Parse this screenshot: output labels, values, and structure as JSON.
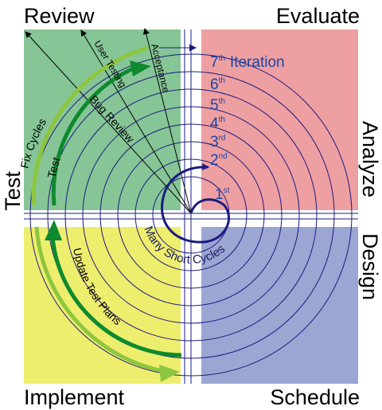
{
  "corners": {
    "top_left": "Review",
    "top_right": "Evaluate",
    "bottom_left": "Implement",
    "bottom_right": "Schedule"
  },
  "sides": {
    "left": "Test",
    "right_upper": "Analyze",
    "right_lower": "Design"
  },
  "green_labels": {
    "fix_cycles": "Fix Cycles",
    "test": "Test",
    "bug_review": "Bug Review",
    "user_testing": "User Testing",
    "acceptance": "Acceptance",
    "update_test_plans": "Update Test Plans"
  },
  "iterations": [
    {
      "num": "1",
      "sup": "st",
      "suffix": ""
    },
    {
      "num": "2",
      "sup": "nd",
      "suffix": ""
    },
    {
      "num": "3",
      "sup": "rd",
      "suffix": ""
    },
    {
      "num": "4",
      "sup": "th",
      "suffix": ""
    },
    {
      "num": "5",
      "sup": "th",
      "suffix": ""
    },
    {
      "num": "6",
      "sup": "th",
      "suffix": ""
    },
    {
      "num": "7",
      "sup": "th",
      "suffix": "Iteration"
    }
  ],
  "center_label": "Many Short Cycles",
  "colors": {
    "review_quadrant": "#86c596",
    "evaluate_quadrant": "#ee9fa1",
    "implement_quadrant": "#eeee6e",
    "schedule_quadrant": "#9ca6d3",
    "spiral": "#1b1b80",
    "arrow_dark_green": "#0e8a2e",
    "arrow_light_green": "#8ec63f",
    "iteration_text": "#1a46a6"
  }
}
